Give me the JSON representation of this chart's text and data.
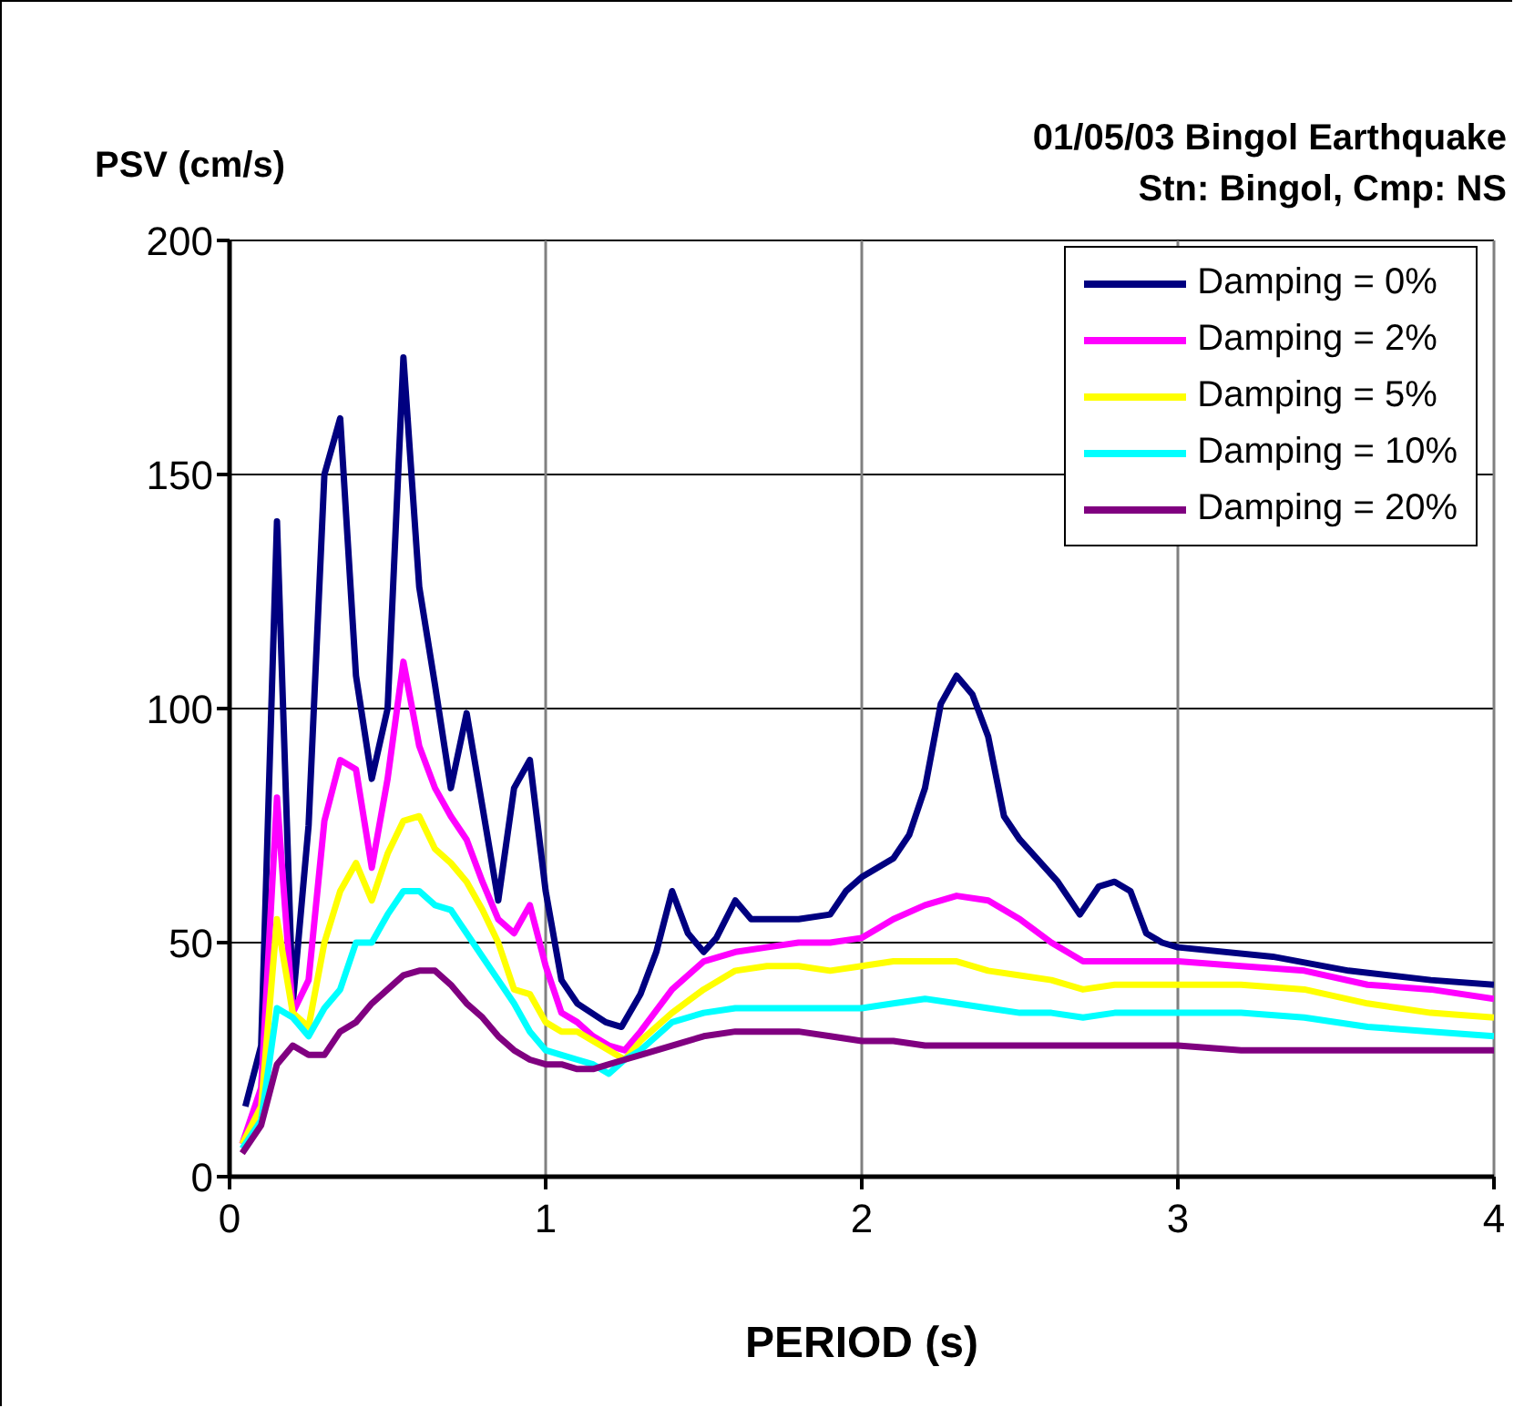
{
  "chart_data": {
    "type": "line",
    "title": "01/05/03 Bingol Earthquake",
    "subtitle": "Stn: Bingol, Cmp: NS",
    "xlabel": "PERIOD (s)",
    "ylabel": "PSV (cm/s)",
    "xlim": [
      0,
      4
    ],
    "xticks": [
      0,
      1,
      2,
      3,
      4
    ],
    "ylim": [
      0,
      200
    ],
    "yticks": [
      0,
      50,
      100,
      150,
      200
    ],
    "grid": true,
    "legend": "top right",
    "marker": "none",
    "line_style": "solid",
    "x": [
      0.04,
      0.1,
      0.15,
      0.2,
      0.25,
      0.3,
      0.35,
      0.4,
      0.45,
      0.5,
      0.55,
      0.6,
      0.65,
      0.7,
      0.75,
      0.8,
      0.85,
      0.9,
      0.95,
      1.0,
      1.05,
      1.1,
      1.15,
      1.2,
      1.25,
      1.3,
      1.4,
      1.5,
      1.6,
      1.7,
      1.8,
      1.9,
      2.0,
      2.1,
      2.2,
      2.3,
      2.4,
      2.5,
      2.6,
      2.7,
      2.8,
      2.9,
      3.0,
      3.2,
      3.4,
      3.6,
      3.8,
      4.0
    ],
    "series": [
      {
        "name": "Damping = 0%",
        "color": "#000080",
        "x": [
          0.05,
          0.1,
          0.15,
          0.2,
          0.25,
          0.3,
          0.35,
          0.4,
          0.45,
          0.5,
          0.55,
          0.6,
          0.65,
          0.7,
          0.75,
          0.8,
          0.85,
          0.9,
          0.95,
          1.0,
          1.05,
          1.1,
          1.19,
          1.24,
          1.3,
          1.35,
          1.4,
          1.45,
          1.5,
          1.54,
          1.6,
          1.65,
          1.8,
          1.9,
          1.95,
          2.0,
          2.1,
          2.15,
          2.2,
          2.25,
          2.3,
          2.35,
          2.4,
          2.45,
          2.5,
          2.62,
          2.69,
          2.75,
          2.8,
          2.85,
          2.9,
          2.95,
          3.0,
          3.3,
          3.54,
          3.8,
          4.0
        ],
        "values": [
          15,
          28,
          140,
          37,
          75,
          150,
          162,
          107,
          85,
          100,
          175,
          126,
          105,
          83,
          99,
          79,
          59,
          83,
          89,
          61,
          42,
          37,
          33,
          32,
          39,
          48,
          61,
          52,
          48,
          51,
          59,
          55,
          55,
          56,
          61,
          64,
          68,
          73,
          83,
          101,
          107,
          103,
          94,
          77,
          72,
          63,
          56,
          62,
          63,
          61,
          52,
          50,
          49,
          47,
          44,
          42,
          41
        ]
      },
      {
        "name": "Damping = 2%",
        "color": "#ff00ff",
        "values": [
          7,
          19,
          81,
          35,
          42,
          76,
          89,
          87,
          66,
          85,
          110,
          92,
          83,
          77,
          72,
          63,
          55,
          52,
          58,
          45,
          35,
          33,
          30,
          28,
          27,
          31,
          40,
          46,
          48,
          49,
          50,
          50,
          51,
          55,
          58,
          60,
          59,
          55,
          50,
          46,
          46,
          46,
          46,
          45,
          44,
          41,
          40,
          38
        ]
      },
      {
        "name": "Damping = 5%",
        "color": "#ffff00",
        "values": [
          7,
          15,
          55,
          35,
          32,
          50,
          61,
          67,
          59,
          69,
          76,
          77,
          70,
          67,
          63,
          57,
          50,
          40,
          39,
          33,
          31,
          31,
          29,
          27,
          25,
          29,
          35,
          40,
          44,
          45,
          45,
          44,
          45,
          46,
          46,
          46,
          44,
          43,
          42,
          40,
          41,
          41,
          41,
          41,
          40,
          37,
          35,
          34
        ]
      },
      {
        "name": "Damping = 10%",
        "color": "#00ffff",
        "values": [
          6,
          12,
          36,
          34,
          30,
          36,
          40,
          50,
          50,
          56,
          61,
          61,
          58,
          57,
          52,
          47,
          42,
          37,
          31,
          27,
          26,
          25,
          24,
          22,
          25,
          27,
          33,
          35,
          36,
          36,
          36,
          36,
          36,
          37,
          38,
          37,
          36,
          35,
          35,
          34,
          35,
          35,
          35,
          35,
          34,
          32,
          31,
          30
        ]
      },
      {
        "name": "Damping = 20%",
        "color": "#800080",
        "values": [
          5,
          11,
          24,
          28,
          26,
          26,
          31,
          33,
          37,
          40,
          43,
          44,
          44,
          41,
          37,
          34,
          30,
          27,
          25,
          24,
          24,
          23,
          23,
          24,
          25,
          26,
          28,
          30,
          31,
          31,
          31,
          30,
          29,
          29,
          28,
          28,
          28,
          28,
          28,
          28,
          28,
          28,
          28,
          27,
          27,
          27,
          27,
          27
        ]
      }
    ]
  }
}
